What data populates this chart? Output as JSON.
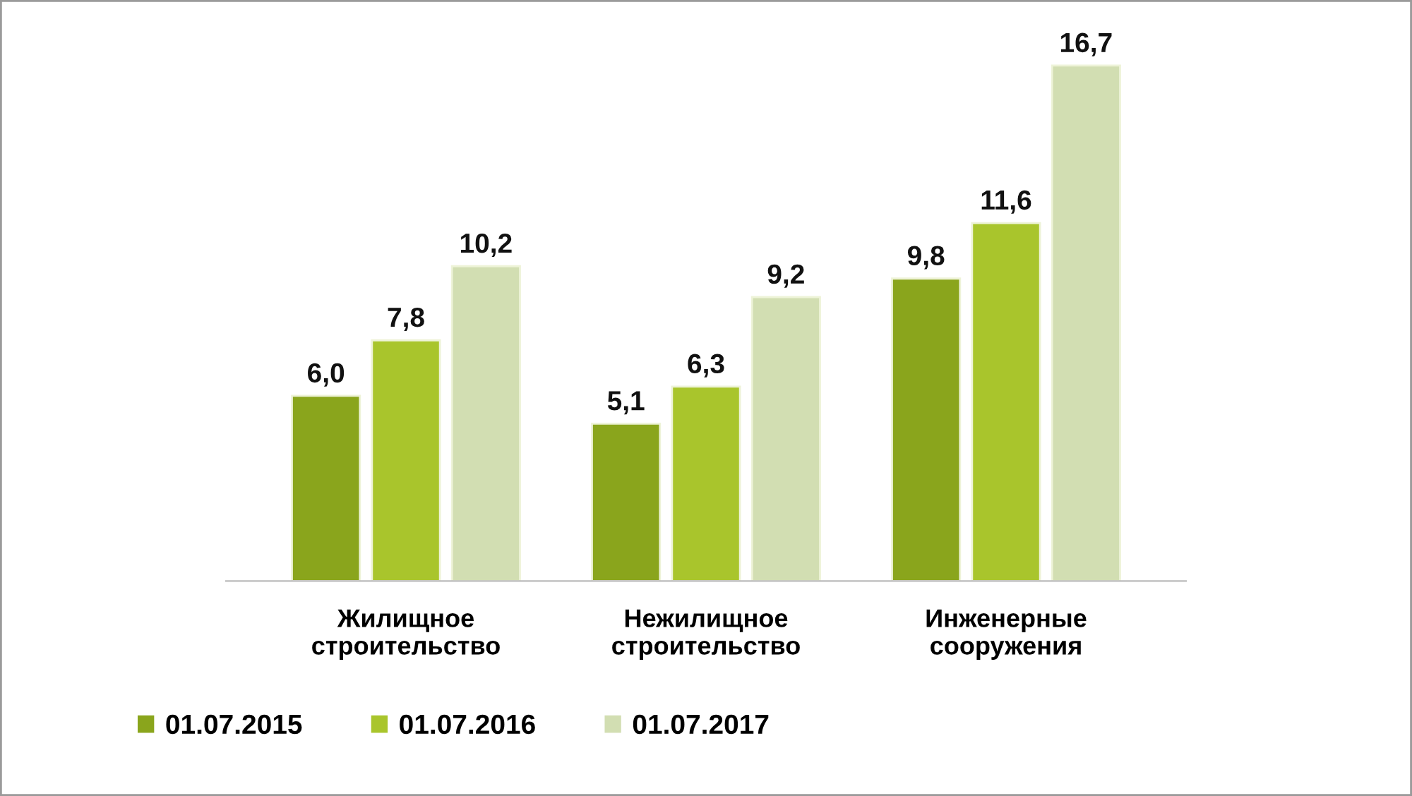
{
  "chart_data": {
    "type": "bar",
    "categories": [
      "Жилищное\nстроительство",
      "Нежилищное\nстроительство",
      "Инженерные\nсооружения"
    ],
    "series": [
      {
        "name": "01.07.2015",
        "color": "#8aa51c",
        "values": [
          6.0,
          5.1,
          9.8
        ],
        "value_labels": [
          "6,0",
          "5,1",
          "9,8"
        ]
      },
      {
        "name": "01.07.2016",
        "color": "#a9c52c",
        "values": [
          7.8,
          6.3,
          11.6
        ],
        "value_labels": [
          "7,8",
          "6,3",
          "11,6"
        ]
      },
      {
        "name": "01.07.2017",
        "color": "#d2deb2",
        "values": [
          10.2,
          9.2,
          16.7
        ],
        "value_labels": [
          "10,2",
          "9,2",
          "16,7"
        ]
      }
    ],
    "legend": "bottom left"
  }
}
